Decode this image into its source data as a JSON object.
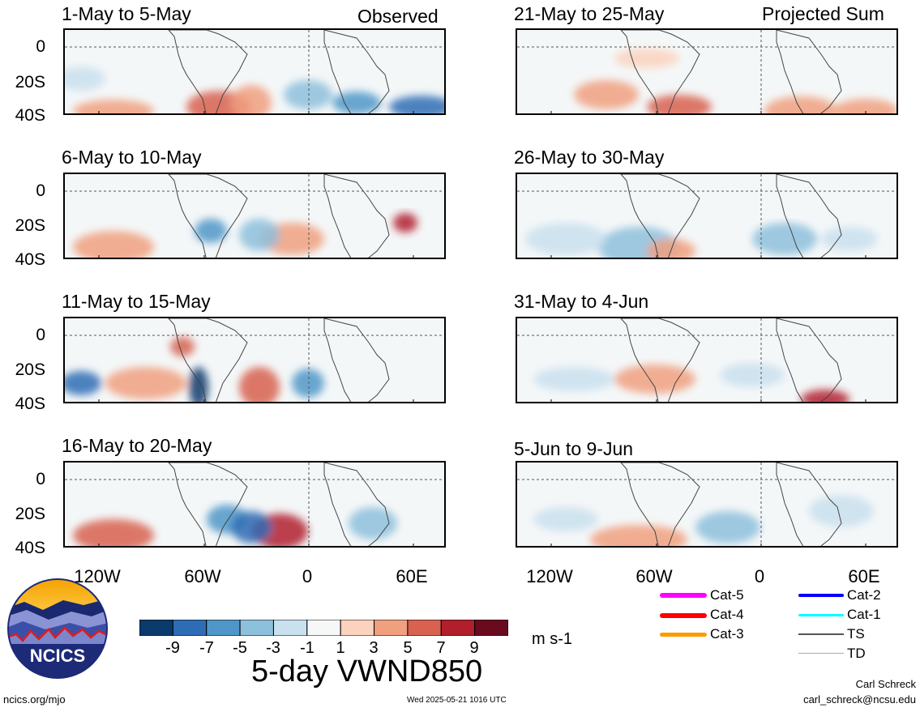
{
  "header": {
    "observed_label": "Observed",
    "projected_label": "Projected Sum"
  },
  "panels": [
    {
      "title": "1-May to 5-May",
      "side": "observed"
    },
    {
      "title": "6-May to 10-May",
      "side": "observed"
    },
    {
      "title": "11-May to 15-May",
      "side": "observed"
    },
    {
      "title": "16-May to 20-May",
      "side": "observed"
    },
    {
      "title": "21-May to 25-May",
      "side": "projected"
    },
    {
      "title": "26-May to 30-May",
      "side": "projected"
    },
    {
      "title": "31-May to 4-Jun",
      "side": "projected"
    },
    {
      "title": "5-Jun to 9-Jun",
      "side": "projected"
    }
  ],
  "y_axis": [
    "0",
    "20S",
    "40S"
  ],
  "x_axis": [
    "120W",
    "60W",
    "0",
    "60E"
  ],
  "colorbar": {
    "ticks": [
      "-9",
      "-7",
      "-5",
      "-3",
      "-1",
      "1",
      "3",
      "5",
      "7",
      "9"
    ],
    "colors": [
      "#0b3a6c",
      "#2e6db5",
      "#4f97c8",
      "#8dc0dc",
      "#c9e1ee",
      "#f6f8f8",
      "#fbd2bd",
      "#f0a07f",
      "#d8614f",
      "#b11f2d",
      "#6a0a1e"
    ],
    "units": "m s-1"
  },
  "main_title": "5-day VWND850",
  "legend": [
    {
      "label": "Cat-5",
      "color": "#ff00ff"
    },
    {
      "label": "Cat-4",
      "color": "#ff0000"
    },
    {
      "label": "Cat-3",
      "color": "#ff9900"
    },
    {
      "label": "Cat-2",
      "color": "#0000ff"
    },
    {
      "label": "Cat-1",
      "color": "#00ffff"
    },
    {
      "label": "TS",
      "color": "#555555"
    },
    {
      "label": "TD",
      "color": "#aaaaaa"
    }
  ],
  "logo": {
    "text": "NCICS"
  },
  "footer": {
    "left": "ncics.org/mjo",
    "center": "Wed 2025-05-21 1016 UTC",
    "author": "Carl Schreck",
    "email": "carl_schreck@ncsu.edu"
  }
}
